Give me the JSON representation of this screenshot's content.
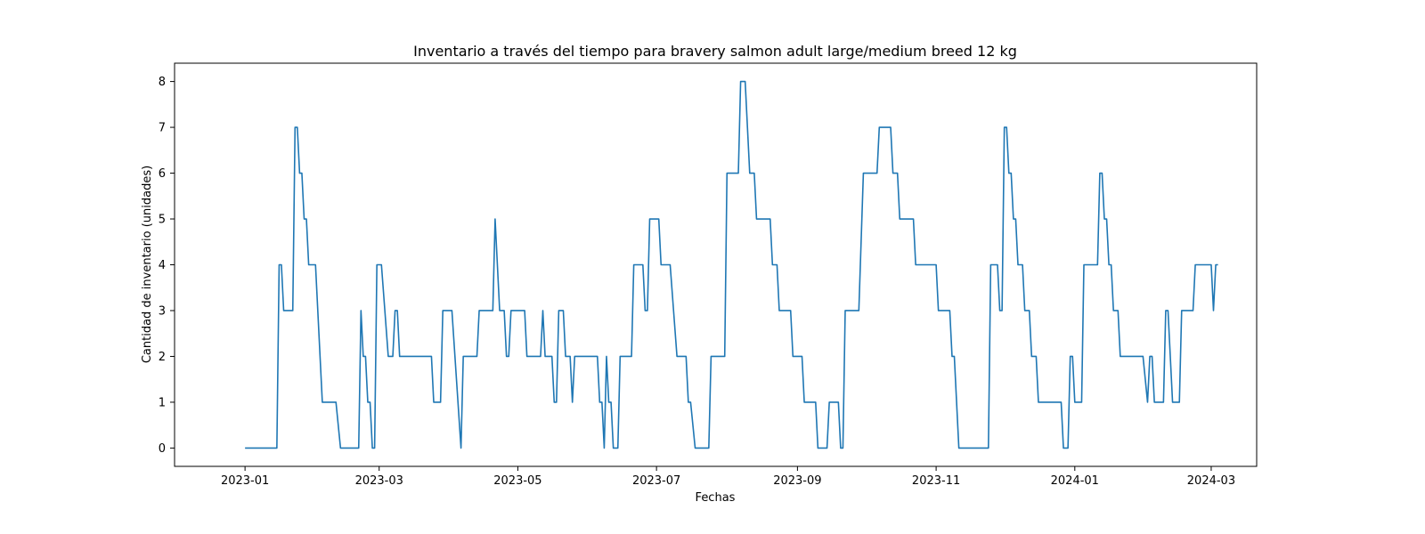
{
  "chart_data": {
    "type": "line",
    "title": "Inventario a través del tiempo para bravery salmon adult large/medium breed 12 kg",
    "xlabel": "Fechas",
    "ylabel": "Cantidad de inventario (unidades)",
    "xlim": [
      "2022-12-01",
      "2024-03-21"
    ],
    "ylim": [
      -0.4,
      8.4
    ],
    "grid": false,
    "line_color": "#1f77b4",
    "x_ticks": [
      {
        "date": "2023-01-01",
        "label": "2023-01"
      },
      {
        "date": "2023-03-01",
        "label": "2023-03"
      },
      {
        "date": "2023-05-01",
        "label": "2023-05"
      },
      {
        "date": "2023-07-01",
        "label": "2023-07"
      },
      {
        "date": "2023-09-01",
        "label": "2023-09"
      },
      {
        "date": "2023-11-01",
        "label": "2023-11"
      },
      {
        "date": "2024-01-01",
        "label": "2024-01"
      },
      {
        "date": "2024-03-01",
        "label": "2024-03"
      }
    ],
    "y_ticks": [
      0,
      1,
      2,
      3,
      4,
      5,
      6,
      7,
      8
    ],
    "series": [
      {
        "points": [
          [
            "2023-01-01",
            0
          ],
          [
            "2023-01-15",
            0
          ],
          [
            "2023-01-16",
            4
          ],
          [
            "2023-01-17",
            4
          ],
          [
            "2023-01-18",
            3
          ],
          [
            "2023-01-22",
            3
          ],
          [
            "2023-01-23",
            7
          ],
          [
            "2023-01-24",
            7
          ],
          [
            "2023-01-25",
            6
          ],
          [
            "2023-01-26",
            6
          ],
          [
            "2023-01-27",
            5
          ],
          [
            "2023-01-28",
            5
          ],
          [
            "2023-01-29",
            4
          ],
          [
            "2023-02-01",
            4
          ],
          [
            "2023-02-04",
            1
          ],
          [
            "2023-02-10",
            1
          ],
          [
            "2023-02-12",
            0
          ],
          [
            "2023-02-20",
            0
          ],
          [
            "2023-02-21",
            3
          ],
          [
            "2023-02-22",
            2
          ],
          [
            "2023-02-23",
            2
          ],
          [
            "2023-02-24",
            1
          ],
          [
            "2023-02-25",
            1
          ],
          [
            "2023-02-26",
            0
          ],
          [
            "2023-02-27",
            0
          ],
          [
            "2023-02-28",
            4
          ],
          [
            "2023-03-02",
            4
          ],
          [
            "2023-03-05",
            2
          ],
          [
            "2023-03-07",
            2
          ],
          [
            "2023-03-08",
            3
          ],
          [
            "2023-03-09",
            3
          ],
          [
            "2023-03-10",
            2
          ],
          [
            "2023-03-24",
            2
          ],
          [
            "2023-03-25",
            1
          ],
          [
            "2023-03-28",
            1
          ],
          [
            "2023-03-29",
            3
          ],
          [
            "2023-04-02",
            3
          ],
          [
            "2023-04-06",
            0
          ],
          [
            "2023-04-07",
            2
          ],
          [
            "2023-04-13",
            2
          ],
          [
            "2023-04-14",
            3
          ],
          [
            "2023-04-20",
            3
          ],
          [
            "2023-04-21",
            5
          ],
          [
            "2023-04-23",
            3
          ],
          [
            "2023-04-25",
            3
          ],
          [
            "2023-04-26",
            2
          ],
          [
            "2023-04-27",
            2
          ],
          [
            "2023-04-28",
            3
          ],
          [
            "2023-05-04",
            3
          ],
          [
            "2023-05-05",
            2
          ],
          [
            "2023-05-11",
            2
          ],
          [
            "2023-05-12",
            3
          ],
          [
            "2023-05-13",
            2
          ],
          [
            "2023-05-16",
            2
          ],
          [
            "2023-05-17",
            1
          ],
          [
            "2023-05-18",
            1
          ],
          [
            "2023-05-19",
            3
          ],
          [
            "2023-05-21",
            3
          ],
          [
            "2023-05-22",
            2
          ],
          [
            "2023-05-24",
            2
          ],
          [
            "2023-05-25",
            1
          ],
          [
            "2023-05-26",
            2
          ],
          [
            "2023-06-05",
            2
          ],
          [
            "2023-06-06",
            1
          ],
          [
            "2023-06-07",
            1
          ],
          [
            "2023-06-08",
            0
          ],
          [
            "2023-06-09",
            2
          ],
          [
            "2023-06-10",
            1
          ],
          [
            "2023-06-11",
            1
          ],
          [
            "2023-06-12",
            0
          ],
          [
            "2023-06-14",
            0
          ],
          [
            "2023-06-15",
            2
          ],
          [
            "2023-06-20",
            2
          ],
          [
            "2023-06-21",
            4
          ],
          [
            "2023-06-25",
            4
          ],
          [
            "2023-06-26",
            3
          ],
          [
            "2023-06-27",
            3
          ],
          [
            "2023-06-28",
            5
          ],
          [
            "2023-07-02",
            5
          ],
          [
            "2023-07-03",
            4
          ],
          [
            "2023-07-07",
            4
          ],
          [
            "2023-07-10",
            2
          ],
          [
            "2023-07-14",
            2
          ],
          [
            "2023-07-15",
            1
          ],
          [
            "2023-07-16",
            1
          ],
          [
            "2023-07-18",
            0
          ],
          [
            "2023-07-24",
            0
          ],
          [
            "2023-07-25",
            2
          ],
          [
            "2023-07-31",
            2
          ],
          [
            "2023-08-01",
            6
          ],
          [
            "2023-08-06",
            6
          ],
          [
            "2023-08-07",
            8
          ],
          [
            "2023-08-09",
            8
          ],
          [
            "2023-08-11",
            6
          ],
          [
            "2023-08-13",
            6
          ],
          [
            "2023-08-14",
            5
          ],
          [
            "2023-08-20",
            5
          ],
          [
            "2023-08-21",
            4
          ],
          [
            "2023-08-23",
            4
          ],
          [
            "2023-08-24",
            3
          ],
          [
            "2023-08-29",
            3
          ],
          [
            "2023-08-30",
            2
          ],
          [
            "2023-09-03",
            2
          ],
          [
            "2023-09-04",
            1
          ],
          [
            "2023-09-09",
            1
          ],
          [
            "2023-09-10",
            0
          ],
          [
            "2023-09-14",
            0
          ],
          [
            "2023-09-15",
            1
          ],
          [
            "2023-09-19",
            1
          ],
          [
            "2023-09-20",
            0
          ],
          [
            "2023-09-21",
            0
          ],
          [
            "2023-09-22",
            3
          ],
          [
            "2023-09-28",
            3
          ],
          [
            "2023-09-30",
            6
          ],
          [
            "2023-10-06",
            6
          ],
          [
            "2023-10-07",
            7
          ],
          [
            "2023-10-12",
            7
          ],
          [
            "2023-10-13",
            6
          ],
          [
            "2023-10-15",
            6
          ],
          [
            "2023-10-16",
            5
          ],
          [
            "2023-10-22",
            5
          ],
          [
            "2023-10-23",
            4
          ],
          [
            "2023-11-01",
            4
          ],
          [
            "2023-11-02",
            3
          ],
          [
            "2023-11-07",
            3
          ],
          [
            "2023-11-08",
            2
          ],
          [
            "2023-11-09",
            2
          ],
          [
            "2023-11-11",
            0
          ],
          [
            "2023-11-24",
            0
          ],
          [
            "2023-11-25",
            4
          ],
          [
            "2023-11-28",
            4
          ],
          [
            "2023-11-29",
            3
          ],
          [
            "2023-11-30",
            3
          ],
          [
            "2023-12-01",
            7
          ],
          [
            "2023-12-02",
            7
          ],
          [
            "2023-12-03",
            6
          ],
          [
            "2023-12-04",
            6
          ],
          [
            "2023-12-05",
            5
          ],
          [
            "2023-12-06",
            5
          ],
          [
            "2023-12-07",
            4
          ],
          [
            "2023-12-09",
            4
          ],
          [
            "2023-12-10",
            3
          ],
          [
            "2023-12-12",
            3
          ],
          [
            "2023-12-13",
            2
          ],
          [
            "2023-12-15",
            2
          ],
          [
            "2023-12-16",
            1
          ],
          [
            "2023-12-26",
            1
          ],
          [
            "2023-12-27",
            0
          ],
          [
            "2023-12-29",
            0
          ],
          [
            "2023-12-30",
            2
          ],
          [
            "2023-12-31",
            2
          ],
          [
            "2024-01-01",
            1
          ],
          [
            "2024-01-04",
            1
          ],
          [
            "2024-01-05",
            4
          ],
          [
            "2024-01-11",
            4
          ],
          [
            "2024-01-12",
            6
          ],
          [
            "2024-01-13",
            6
          ],
          [
            "2024-01-14",
            5
          ],
          [
            "2024-01-15",
            5
          ],
          [
            "2024-01-16",
            4
          ],
          [
            "2024-01-17",
            4
          ],
          [
            "2024-01-18",
            3
          ],
          [
            "2024-01-20",
            3
          ],
          [
            "2024-01-21",
            2
          ],
          [
            "2024-01-31",
            2
          ],
          [
            "2024-02-02",
            1
          ],
          [
            "2024-02-03",
            2
          ],
          [
            "2024-02-04",
            2
          ],
          [
            "2024-02-05",
            1
          ],
          [
            "2024-02-09",
            1
          ],
          [
            "2024-02-10",
            3
          ],
          [
            "2024-02-11",
            3
          ],
          [
            "2024-02-13",
            1
          ],
          [
            "2024-02-16",
            1
          ],
          [
            "2024-02-17",
            3
          ],
          [
            "2024-02-22",
            3
          ],
          [
            "2024-02-23",
            4
          ],
          [
            "2024-03-01",
            4
          ],
          [
            "2024-03-02",
            3
          ],
          [
            "2024-03-03",
            4
          ],
          [
            "2024-03-04",
            4
          ]
        ]
      }
    ]
  }
}
